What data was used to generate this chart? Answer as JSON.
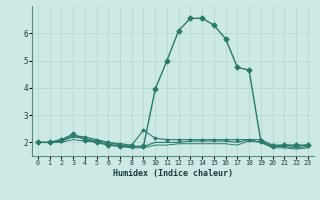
{
  "xlabel": "Humidex (Indice chaleur)",
  "bg_color": "#cce9e5",
  "grid_color": "#b8d8d4",
  "line_color": "#2a7a6a",
  "xlim": [
    -0.5,
    23.5
  ],
  "ylim": [
    1.5,
    7.0
  ],
  "yticks": [
    2,
    3,
    4,
    5,
    6
  ],
  "xticks": [
    0,
    1,
    2,
    3,
    4,
    5,
    6,
    7,
    8,
    9,
    10,
    11,
    12,
    13,
    14,
    15,
    16,
    17,
    18,
    19,
    20,
    21,
    22,
    23
  ],
  "series": [
    {
      "x": [
        0,
        1,
        2,
        3,
        4,
        5,
        6,
        7,
        8,
        9,
        10,
        11,
        12,
        13,
        14,
        15,
        16,
        17,
        18,
        19,
        20,
        21,
        22,
        23
      ],
      "y": [
        2.0,
        2.0,
        2.1,
        2.3,
        2.1,
        2.0,
        1.9,
        1.85,
        1.85,
        1.85,
        3.95,
        5.0,
        6.1,
        6.55,
        6.55,
        6.3,
        5.8,
        4.75,
        4.65,
        2.05,
        1.85,
        1.9,
        1.9,
        1.9
      ],
      "marker": "D",
      "markersize": 2.5,
      "linewidth": 1.0
    },
    {
      "x": [
        0,
        1,
        2,
        3,
        4,
        5,
        6,
        7,
        8,
        9,
        10,
        11,
        12,
        13,
        14,
        15,
        16,
        17,
        18,
        19,
        20,
        21,
        22,
        23
      ],
      "y": [
        2.0,
        2.0,
        2.05,
        2.25,
        2.2,
        2.1,
        2.0,
        1.95,
        1.9,
        2.45,
        2.15,
        2.1,
        2.1,
        2.1,
        2.1,
        2.1,
        2.1,
        2.1,
        2.1,
        2.1,
        1.9,
        1.9,
        1.85,
        1.9
      ],
      "marker": "D",
      "markersize": 1.5,
      "linewidth": 0.8
    },
    {
      "x": [
        0,
        1,
        2,
        3,
        4,
        5,
        6,
        7,
        8,
        9,
        10,
        11,
        12,
        13,
        14,
        15,
        16,
        17,
        18,
        19,
        20,
        21,
        22,
        23
      ],
      "y": [
        2.0,
        2.0,
        2.05,
        2.2,
        2.15,
        2.05,
        2.0,
        1.9,
        1.85,
        1.85,
        2.0,
        2.0,
        2.0,
        2.05,
        2.05,
        2.05,
        2.05,
        2.0,
        2.1,
        2.0,
        1.85,
        1.85,
        1.8,
        1.85
      ],
      "marker": null,
      "markersize": 0,
      "linewidth": 0.8
    },
    {
      "x": [
        0,
        1,
        2,
        3,
        4,
        5,
        6,
        7,
        8,
        9,
        10,
        11,
        12,
        13,
        14,
        15,
        16,
        17,
        18,
        19,
        20,
        21,
        22,
        23
      ],
      "y": [
        2.0,
        2.0,
        2.0,
        2.1,
        2.05,
        2.0,
        1.95,
        1.85,
        1.8,
        1.8,
        1.9,
        1.9,
        1.95,
        1.95,
        1.95,
        1.95,
        1.95,
        1.9,
        2.05,
        2.0,
        1.8,
        1.8,
        1.75,
        1.8
      ],
      "marker": null,
      "markersize": 0,
      "linewidth": 0.7
    }
  ]
}
